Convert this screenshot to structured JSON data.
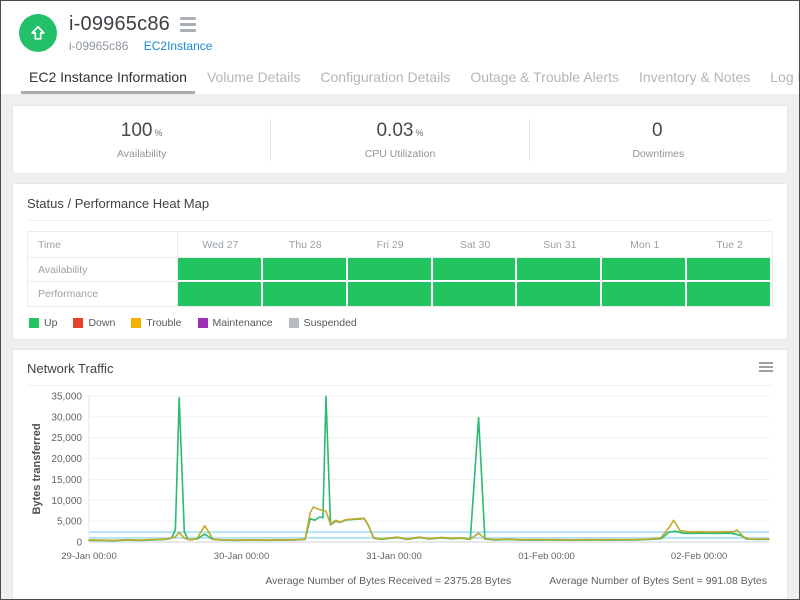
{
  "header": {
    "title": "i-09965c86",
    "subtitle_name": "i-09965c86",
    "subtitle_type": "EC2Instance",
    "status_color": "#22c069"
  },
  "tabs": [
    {
      "label": "EC2 Instance Information",
      "active": true
    },
    {
      "label": "Volume Details",
      "active": false
    },
    {
      "label": "Configuration Details",
      "active": false
    },
    {
      "label": "Outage & Trouble Alerts",
      "active": false
    },
    {
      "label": "Inventory & Notes",
      "active": false
    },
    {
      "label": "Log Report",
      "active": false
    }
  ],
  "stats": [
    {
      "value": "100",
      "unit": "%",
      "label": "Availability"
    },
    {
      "value": "0.03",
      "unit": "%",
      "label": "CPU Utilization"
    },
    {
      "value": "0",
      "unit": "",
      "label": "Downtimes"
    }
  ],
  "heatmap": {
    "title": "Status / Performance Heat Map",
    "columns": [
      "Time",
      "Wed 27",
      "Thu 28",
      "Fri 29",
      "Sat 30",
      "Sun 31",
      "Mon 1",
      "Tue 2"
    ],
    "rows": [
      {
        "label": "Availability",
        "cells": [
          "up",
          "up",
          "up",
          "up",
          "up",
          "up",
          "up"
        ]
      },
      {
        "label": "Performance",
        "cells": [
          "up",
          "up",
          "up",
          "up",
          "up",
          "up",
          "up"
        ]
      }
    ],
    "status_colors": {
      "up": "#21c45f",
      "down": "#e8402c",
      "trouble": "#f2b200",
      "maintenance": "#9b30b5",
      "suspended": "#b7bcc1"
    },
    "legend": [
      {
        "label": "Up",
        "color": "#1fc463",
        "status": "up"
      },
      {
        "label": "Down",
        "color": "#e8402c",
        "status": "down"
      },
      {
        "label": "Trouble",
        "color": "#f2b200",
        "status": "trouble"
      },
      {
        "label": "Maintenance",
        "color": "#9b30b5",
        "status": "maintenance"
      },
      {
        "label": "Suspended",
        "color": "#b7bcc1",
        "status": "suspended"
      }
    ]
  },
  "chart_data": {
    "type": "line",
    "title": "Network Traffic",
    "ylabel": "Bytes transferred",
    "ylim": [
      0,
      35000
    ],
    "ytick_step": 5000,
    "x_unit": "hours since 29-Jan 00:00",
    "xlim": [
      0,
      107
    ],
    "grid": true,
    "legend_position": "none",
    "average_line_color": "#b5e2f4",
    "xticks": [
      {
        "x": 0,
        "label": "29-Jan 00:00"
      },
      {
        "x": 24,
        "label": "30-Jan 00:00"
      },
      {
        "x": 48,
        "label": "31-Jan 00:00"
      },
      {
        "x": 72,
        "label": "01-Feb 00:00"
      },
      {
        "x": 96,
        "label": "02-Feb 00:00"
      }
    ],
    "series": [
      {
        "name": "Bytes Received",
        "color": "#2dba71",
        "average": 2375.28,
        "points": [
          [
            0,
            400
          ],
          [
            2,
            350
          ],
          [
            4,
            300
          ],
          [
            6,
            450
          ],
          [
            8,
            350
          ],
          [
            10,
            500
          ],
          [
            12,
            600
          ],
          [
            13,
            900
          ],
          [
            13.6,
            3000
          ],
          [
            14.2,
            34600
          ],
          [
            15,
            2500
          ],
          [
            15.6,
            600
          ],
          [
            17,
            700
          ],
          [
            18.2,
            1900
          ],
          [
            19.5,
            600
          ],
          [
            21,
            450
          ],
          [
            23,
            400
          ],
          [
            26,
            450
          ],
          [
            28,
            400
          ],
          [
            30,
            500
          ],
          [
            32,
            450
          ],
          [
            34,
            600
          ],
          [
            34.8,
            5600
          ],
          [
            35.5,
            5200
          ],
          [
            36.3,
            6000
          ],
          [
            36.8,
            5800
          ],
          [
            37.3,
            34900
          ],
          [
            38,
            4100
          ],
          [
            38.8,
            5000
          ],
          [
            39.5,
            4700
          ],
          [
            40.5,
            5300
          ],
          [
            41.5,
            5400
          ],
          [
            42.5,
            5500
          ],
          [
            43.3,
            5600
          ],
          [
            44,
            3800
          ],
          [
            44.8,
            900
          ],
          [
            46,
            600
          ],
          [
            48.5,
            1100
          ],
          [
            50,
            600
          ],
          [
            52,
            1100
          ],
          [
            53.5,
            700
          ],
          [
            55.5,
            1000
          ],
          [
            57,
            800
          ],
          [
            58.5,
            900
          ],
          [
            60,
            600
          ],
          [
            61.3,
            29800
          ],
          [
            62.3,
            700
          ],
          [
            64,
            500
          ],
          [
            66,
            600
          ],
          [
            68,
            450
          ],
          [
            70,
            500
          ],
          [
            72,
            450
          ],
          [
            74,
            500
          ],
          [
            76,
            400
          ],
          [
            78,
            500
          ],
          [
            80,
            450
          ],
          [
            82,
            500
          ],
          [
            84,
            450
          ],
          [
            86,
            500
          ],
          [
            88,
            600
          ],
          [
            90,
            800
          ],
          [
            91.3,
            2400
          ],
          [
            92.3,
            2600
          ],
          [
            93.5,
            2100
          ],
          [
            95,
            2050
          ],
          [
            97,
            2100
          ],
          [
            99,
            2050
          ],
          [
            101,
            2100
          ],
          [
            102.5,
            1600
          ],
          [
            103.5,
            700
          ],
          [
            105,
            600
          ],
          [
            107,
            650
          ]
        ]
      },
      {
        "name": "Bytes Sent",
        "color": "#c3aa28",
        "average": 991.08,
        "points": [
          [
            0,
            500
          ],
          [
            2,
            450
          ],
          [
            4,
            400
          ],
          [
            6,
            550
          ],
          [
            8,
            450
          ],
          [
            10,
            600
          ],
          [
            12,
            700
          ],
          [
            13.6,
            1200
          ],
          [
            14.2,
            2300
          ],
          [
            15,
            900
          ],
          [
            16,
            500
          ],
          [
            17,
            800
          ],
          [
            18.2,
            3900
          ],
          [
            19.5,
            700
          ],
          [
            21,
            500
          ],
          [
            23,
            450
          ],
          [
            26,
            500
          ],
          [
            28,
            450
          ],
          [
            30,
            550
          ],
          [
            32,
            500
          ],
          [
            34,
            700
          ],
          [
            34.8,
            7000
          ],
          [
            35.3,
            8400
          ],
          [
            36,
            7900
          ],
          [
            36.8,
            7600
          ],
          [
            37.3,
            7400
          ],
          [
            38,
            4300
          ],
          [
            38.8,
            5200
          ],
          [
            39.5,
            4800
          ],
          [
            40.5,
            5400
          ],
          [
            41.5,
            5500
          ],
          [
            42.5,
            5600
          ],
          [
            43.3,
            5700
          ],
          [
            44,
            3900
          ],
          [
            44.8,
            1000
          ],
          [
            46,
            700
          ],
          [
            48.5,
            1200
          ],
          [
            50,
            700
          ],
          [
            52,
            1200
          ],
          [
            53.5,
            800
          ],
          [
            55.5,
            1100
          ],
          [
            57,
            900
          ],
          [
            58.5,
            1000
          ],
          [
            60,
            700
          ],
          [
            61.3,
            2100
          ],
          [
            62.3,
            800
          ],
          [
            64,
            600
          ],
          [
            66,
            700
          ],
          [
            68,
            550
          ],
          [
            70,
            600
          ],
          [
            72,
            550
          ],
          [
            74,
            600
          ],
          [
            76,
            500
          ],
          [
            78,
            600
          ],
          [
            80,
            550
          ],
          [
            82,
            600
          ],
          [
            84,
            550
          ],
          [
            86,
            600
          ],
          [
            88,
            700
          ],
          [
            90,
            1000
          ],
          [
            91.3,
            3500
          ],
          [
            92,
            5200
          ],
          [
            93,
            2700
          ],
          [
            94.5,
            2400
          ],
          [
            96,
            2450
          ],
          [
            98,
            2400
          ],
          [
            100,
            2450
          ],
          [
            101.5,
            2500
          ],
          [
            102,
            2900
          ],
          [
            103,
            1200
          ],
          [
            103.8,
            750
          ],
          [
            105,
            700
          ],
          [
            107,
            750
          ]
        ]
      }
    ]
  },
  "chart_footer": {
    "received": "Average Number of Bytes Received = 2375.28 Bytes",
    "sent": "Average Number of Bytes Sent = 991.08 Bytes"
  }
}
